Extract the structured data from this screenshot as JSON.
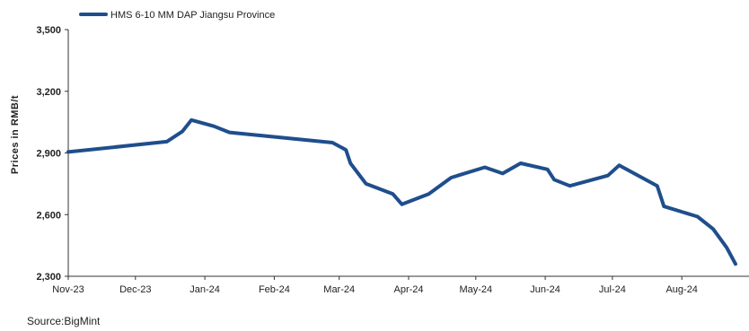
{
  "chart_data": {
    "type": "line",
    "title": "",
    "xlabel": "",
    "ylabel": "Prices in RMB/t",
    "ylim": [
      2300,
      3500
    ],
    "yticks": [
      2300,
      2600,
      2900,
      3200,
      3500
    ],
    "ytick_labels": [
      "2,300",
      "2,600",
      "2,900",
      "3,200",
      "3,500"
    ],
    "xlim": [
      "2023-11-01",
      "2024-08-31"
    ],
    "xticks": [
      {
        "date": "2023-11-01",
        "label": "Nov-23"
      },
      {
        "date": "2023-12-01",
        "label": "Dec-23"
      },
      {
        "date": "2024-01-01",
        "label": "Jan-24"
      },
      {
        "date": "2024-02-01",
        "label": "Feb-24"
      },
      {
        "date": "2024-03-01",
        "label": "Mar-24"
      },
      {
        "date": "2024-04-01",
        "label": "Apr-24"
      },
      {
        "date": "2024-05-01",
        "label": "May-24"
      },
      {
        "date": "2024-06-01",
        "label": "Jun-24"
      },
      {
        "date": "2024-07-01",
        "label": "Jul-24"
      },
      {
        "date": "2024-08-01",
        "label": "Aug-24"
      }
    ],
    "grid": false,
    "legend": "top-left",
    "series": [
      {
        "name": "HMS 6-10 MM DAP Jiangsu Province",
        "color": "#1f4e8c",
        "x": [
          "2023-11-01",
          "2023-12-15",
          "2023-12-22",
          "2023-12-26",
          "2024-01-05",
          "2024-01-12",
          "2024-02-27",
          "2024-03-04",
          "2024-03-06",
          "2024-03-13",
          "2024-03-25",
          "2024-03-29",
          "2024-04-10",
          "2024-04-20",
          "2024-05-05",
          "2024-05-13",
          "2024-05-21",
          "2024-06-02",
          "2024-06-05",
          "2024-06-12",
          "2024-06-29",
          "2024-07-04",
          "2024-07-21",
          "2024-07-24",
          "2024-08-08",
          "2024-08-15",
          "2024-08-21",
          "2024-08-25"
        ],
        "values": [
          2905,
          2955,
          3005,
          3060,
          3030,
          3000,
          2950,
          2915,
          2850,
          2750,
          2700,
          2650,
          2700,
          2780,
          2830,
          2800,
          2850,
          2820,
          2770,
          2740,
          2790,
          2840,
          2740,
          2640,
          2590,
          2530,
          2440,
          2360
        ]
      }
    ]
  },
  "source": "Source:BigMint"
}
